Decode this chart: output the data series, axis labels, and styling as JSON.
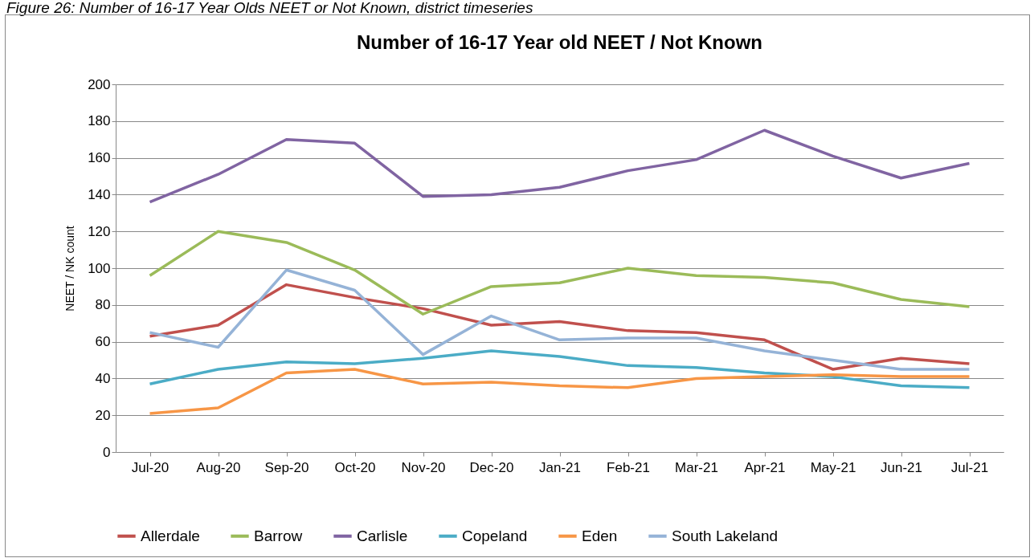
{
  "chart_data": {
    "type": "line",
    "title": "Number of 16-17 Year old NEET / Not Known",
    "ylabel": "NEET / NK count",
    "annotations": [
      "Figure 26: Number of 16-17 Year Olds NEET or Not Known, district timeseries"
    ],
    "categories": [
      "Jul-20",
      "Aug-20",
      "Sep-20",
      "Oct-20",
      "Nov-20",
      "Dec-20",
      "Jan-21",
      "Feb-21",
      "Mar-21",
      "Apr-21",
      "May-21",
      "Jun-21",
      "Jul-21"
    ],
    "series": [
      {
        "name": "Allerdale",
        "color": "#c0504d",
        "values": [
          63,
          69,
          91,
          84,
          78,
          69,
          71,
          66,
          65,
          61,
          45,
          51,
          48
        ]
      },
      {
        "name": "Barrow",
        "color": "#9bbb59",
        "values": [
          96,
          120,
          114,
          99,
          75,
          90,
          92,
          100,
          96,
          95,
          92,
          83,
          79
        ]
      },
      {
        "name": "Carlisle",
        "color": "#8064a2",
        "values": [
          136,
          151,
          170,
          168,
          139,
          140,
          144,
          153,
          159,
          175,
          161,
          149,
          157
        ]
      },
      {
        "name": "Copeland",
        "color": "#4bacc6",
        "values": [
          37,
          45,
          49,
          48,
          51,
          55,
          52,
          47,
          46,
          43,
          41,
          36,
          35
        ]
      },
      {
        "name": "Eden",
        "color": "#f79646",
        "values": [
          21,
          24,
          43,
          45,
          37,
          38,
          36,
          35,
          40,
          41,
          42,
          41,
          41
        ]
      },
      {
        "name": "South Lakeland",
        "color": "#95b3d7",
        "values": [
          65,
          57,
          99,
          88,
          53,
          74,
          61,
          62,
          62,
          55,
          50,
          45,
          45
        ]
      }
    ],
    "ylim": [
      0,
      200
    ],
    "yticks": [
      0,
      20,
      40,
      60,
      80,
      100,
      120,
      140,
      160,
      180,
      200
    ],
    "grid": "y",
    "legend": "bottom",
    "marker": "none",
    "line_style": "solid"
  }
}
